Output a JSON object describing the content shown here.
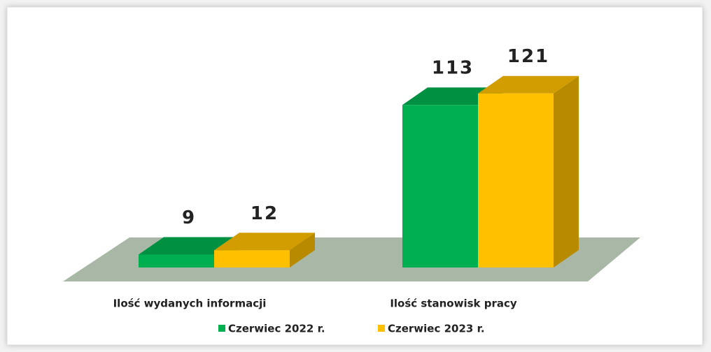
{
  "chart_data": {
    "type": "bar3d",
    "categories": [
      "Ilość wydanych informacji",
      "Ilość stanowisk pracy"
    ],
    "series": [
      {
        "name": "Czerwiec 2022 r.",
        "color": "#00b050",
        "values": [
          9,
          113
        ]
      },
      {
        "name": "Czerwiec 2023 r.",
        "color": "#ffc000",
        "values": [
          12,
          121
        ]
      }
    ],
    "legend": "bottom"
  }
}
